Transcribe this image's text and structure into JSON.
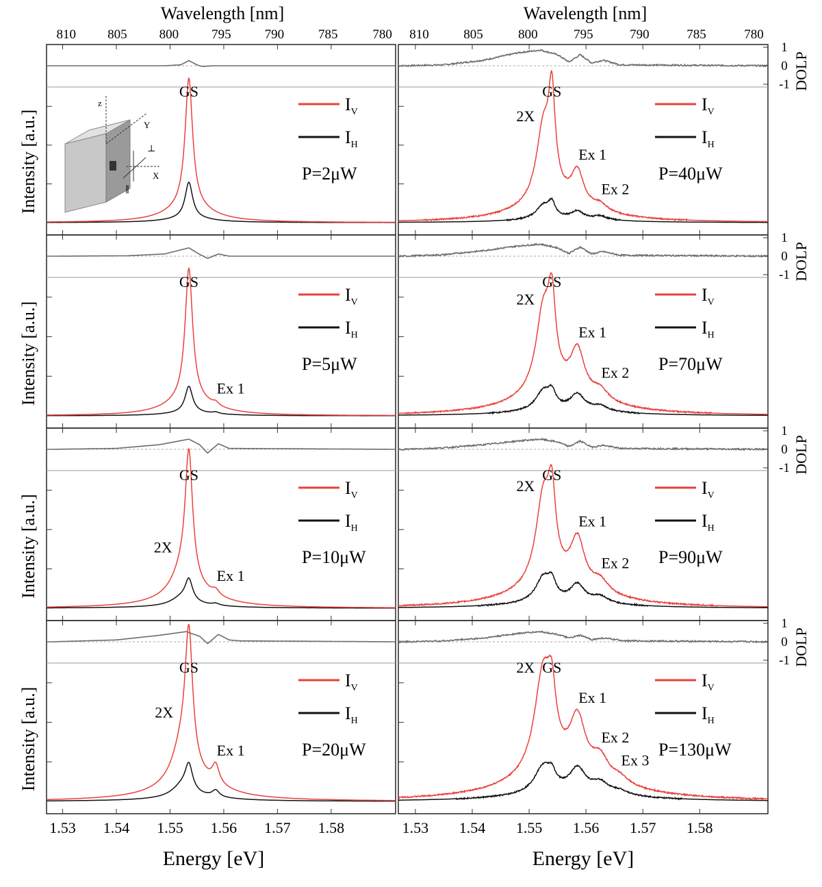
{
  "figure": {
    "top_axis_label": "Wavelength [nm]",
    "bottom_axis_label": "Energy [eV]",
    "left_axis_label": "Intensity [a.u.]",
    "right_axis_label": "DOLP",
    "dolp_ticks": [
      "1",
      "0",
      "-1"
    ],
    "wavelength_ticks": [
      "810",
      "805",
      "800",
      "795",
      "790",
      "785",
      "780"
    ],
    "energy_ticks": [
      "1.53",
      "1.54",
      "1.55",
      "1.56",
      "1.57",
      "1.58"
    ],
    "legend_v": "I",
    "legend_v_sub": "V",
    "legend_h": "I",
    "legend_h_sub": "H",
    "inset_axes": {
      "z": "z",
      "y": "Y",
      "x": "X",
      "perp": "⊥",
      "par": "∥"
    }
  },
  "colors": {
    "iv": "#e8413a",
    "ih": "#111111",
    "dolp": "#6b6b6b",
    "frame": "#333333"
  },
  "chart_data": {
    "type": "line",
    "xlabel": "Energy [eV]",
    "secondary_xlabel": "Wavelength [nm]",
    "ylabel": "Intensity [a.u.]",
    "xlim": [
      1.527,
      1.592
    ],
    "grid": false,
    "legend_placement": "top-right",
    "panels": [
      {
        "power": "P=2μW",
        "column": 0,
        "row": 0,
        "peaks": [
          {
            "label": "GS",
            "e": 1.5535,
            "w": 0.00085,
            "v": 1.0,
            "h": 0.28
          }
        ],
        "dolp": [
          [
            1.528,
            0
          ],
          [
            1.549,
            0
          ],
          [
            1.552,
            0.05
          ],
          [
            1.5535,
            0.28
          ],
          [
            1.555,
            0.05
          ],
          [
            1.556,
            -0.04
          ],
          [
            1.558,
            0
          ],
          [
            1.592,
            0
          ]
        ]
      },
      {
        "power": "P=5μW",
        "column": 0,
        "row": 1,
        "peaks": [
          {
            "label": "GS",
            "e": 1.5535,
            "w": 0.00085,
            "v": 1.0,
            "h": 0.2
          },
          {
            "label": "Ex 1",
            "e": 1.5585,
            "w": 0.0007,
            "v": 0.025,
            "h": 0.012
          }
        ],
        "dolp": [
          [
            1.528,
            0
          ],
          [
            1.542,
            0.02
          ],
          [
            1.549,
            0.12
          ],
          [
            1.5535,
            0.45
          ],
          [
            1.5555,
            0.1
          ],
          [
            1.557,
            -0.12
          ],
          [
            1.559,
            0.12
          ],
          [
            1.561,
            0
          ],
          [
            1.592,
            0
          ]
        ]
      },
      {
        "power": "P=10μW",
        "column": 0,
        "row": 2,
        "peaks": [
          {
            "label": "GS",
            "e": 1.5535,
            "w": 0.00085,
            "v": 1.0,
            "h": 0.17
          },
          {
            "label": "2X",
            "e": 1.552,
            "w": 0.0022,
            "v": 0.12,
            "h": 0.05
          },
          {
            "label": "Ex 1",
            "e": 1.5585,
            "w": 0.0008,
            "v": 0.04,
            "h": 0.014
          }
        ],
        "dolp": [
          [
            1.528,
            0
          ],
          [
            1.54,
            0.05
          ],
          [
            1.548,
            0.25
          ],
          [
            1.5535,
            0.55
          ],
          [
            1.5555,
            0.25
          ],
          [
            1.557,
            -0.2
          ],
          [
            1.559,
            0.3
          ],
          [
            1.561,
            0.05
          ],
          [
            1.592,
            0
          ]
        ]
      },
      {
        "power": "P=20μW",
        "column": 0,
        "row": 3,
        "peaks": [
          {
            "label": "GS",
            "e": 1.5535,
            "w": 0.00085,
            "v": 1.0,
            "h": 0.2
          },
          {
            "label": "2X",
            "e": 1.5522,
            "w": 0.0022,
            "v": 0.25,
            "h": 0.08
          },
          {
            "label": "Ex 1",
            "e": 1.5585,
            "w": 0.0008,
            "v": 0.14,
            "h": 0.05
          }
        ],
        "dolp": [
          [
            1.528,
            0
          ],
          [
            1.54,
            0.1
          ],
          [
            1.548,
            0.35
          ],
          [
            1.553,
            0.55
          ],
          [
            1.5555,
            0.3
          ],
          [
            1.557,
            -0.1
          ],
          [
            1.559,
            0.4
          ],
          [
            1.561,
            0.1
          ],
          [
            1.563,
            0.05
          ],
          [
            1.592,
            0
          ]
        ]
      },
      {
        "power": "P=40μW",
        "column": 1,
        "row": 0,
        "peaks": [
          {
            "label": "GS",
            "e": 1.554,
            "w": 0.0007,
            "v": 0.7,
            "h": 0.1
          },
          {
            "label": "2X",
            "e": 1.5525,
            "w": 0.0015,
            "v": 0.55,
            "h": 0.1
          },
          {
            "label": "Ex 1",
            "e": 1.5585,
            "w": 0.0013,
            "v": 0.26,
            "h": 0.06
          },
          {
            "label": "Ex 2",
            "e": 1.5625,
            "w": 0.0015,
            "v": 0.05,
            "h": 0.03
          }
        ],
        "dolp": [
          [
            1.528,
            0
          ],
          [
            1.535,
            0.05
          ],
          [
            1.542,
            0.3
          ],
          [
            1.548,
            0.7
          ],
          [
            1.552,
            0.85
          ],
          [
            1.555,
            0.6
          ],
          [
            1.557,
            0.2
          ],
          [
            1.559,
            0.6
          ],
          [
            1.561,
            0.15
          ],
          [
            1.563,
            0.3
          ],
          [
            1.566,
            0.05
          ],
          [
            1.592,
            0
          ]
        ]
      },
      {
        "power": "P=70μW",
        "column": 1,
        "row": 1,
        "peaks": [
          {
            "label": "GS",
            "e": 1.554,
            "w": 0.0008,
            "v": 0.55,
            "h": 0.1
          },
          {
            "label": "2X",
            "e": 1.5525,
            "w": 0.0016,
            "v": 0.6,
            "h": 0.14
          },
          {
            "label": "Ex 1",
            "e": 1.5585,
            "w": 0.0015,
            "v": 0.34,
            "h": 0.12
          },
          {
            "label": "Ex 2",
            "e": 1.5625,
            "w": 0.0017,
            "v": 0.08,
            "h": 0.04
          }
        ],
        "dolp": [
          [
            1.528,
            0
          ],
          [
            1.535,
            0.08
          ],
          [
            1.542,
            0.3
          ],
          [
            1.548,
            0.55
          ],
          [
            1.552,
            0.65
          ],
          [
            1.555,
            0.45
          ],
          [
            1.557,
            0.15
          ],
          [
            1.559,
            0.5
          ],
          [
            1.561,
            0.12
          ],
          [
            1.563,
            0.25
          ],
          [
            1.566,
            0.05
          ],
          [
            1.592,
            0
          ]
        ]
      },
      {
        "power": "P=90μW",
        "column": 1,
        "row": 2,
        "peaks": [
          {
            "label": "GS",
            "e": 1.554,
            "w": 0.0008,
            "v": 0.52,
            "h": 0.11
          },
          {
            "label": "2X",
            "e": 1.5525,
            "w": 0.0016,
            "v": 0.65,
            "h": 0.18
          },
          {
            "label": "Ex 1",
            "e": 1.5585,
            "w": 0.0015,
            "v": 0.36,
            "h": 0.13
          },
          {
            "label": "Ex 2",
            "e": 1.5625,
            "w": 0.0017,
            "v": 0.09,
            "h": 0.05
          }
        ],
        "dolp": [
          [
            1.528,
            0
          ],
          [
            1.535,
            0.08
          ],
          [
            1.542,
            0.25
          ],
          [
            1.548,
            0.45
          ],
          [
            1.552,
            0.55
          ],
          [
            1.555,
            0.4
          ],
          [
            1.557,
            0.15
          ],
          [
            1.559,
            0.45
          ],
          [
            1.561,
            0.12
          ],
          [
            1.563,
            0.22
          ],
          [
            1.566,
            0.05
          ],
          [
            1.592,
            0
          ]
        ]
      },
      {
        "power": "P=130μW",
        "column": 1,
        "row": 3,
        "peaks": [
          {
            "label": "2X",
            "e": 1.5525,
            "w": 0.0019,
            "v": 0.78,
            "h": 0.2
          },
          {
            "label": "GS",
            "e": 1.554,
            "w": 0.0008,
            "v": 0.35,
            "h": 0.08
          },
          {
            "label": "Ex 1",
            "e": 1.5585,
            "w": 0.0017,
            "v": 0.42,
            "h": 0.18
          },
          {
            "label": "Ex 2",
            "e": 1.5625,
            "w": 0.0018,
            "v": 0.16,
            "h": 0.08
          },
          {
            "label": "Ex 3",
            "e": 1.566,
            "w": 0.0018,
            "v": 0.05,
            "h": 0.03
          }
        ],
        "dolp": [
          [
            1.528,
            0
          ],
          [
            1.535,
            0.05
          ],
          [
            1.542,
            0.2
          ],
          [
            1.548,
            0.45
          ],
          [
            1.552,
            0.55
          ],
          [
            1.555,
            0.4
          ],
          [
            1.557,
            0.2
          ],
          [
            1.559,
            0.35
          ],
          [
            1.561,
            0.12
          ],
          [
            1.563,
            0.2
          ],
          [
            1.567,
            0.05
          ],
          [
            1.592,
            0
          ]
        ]
      }
    ]
  }
}
